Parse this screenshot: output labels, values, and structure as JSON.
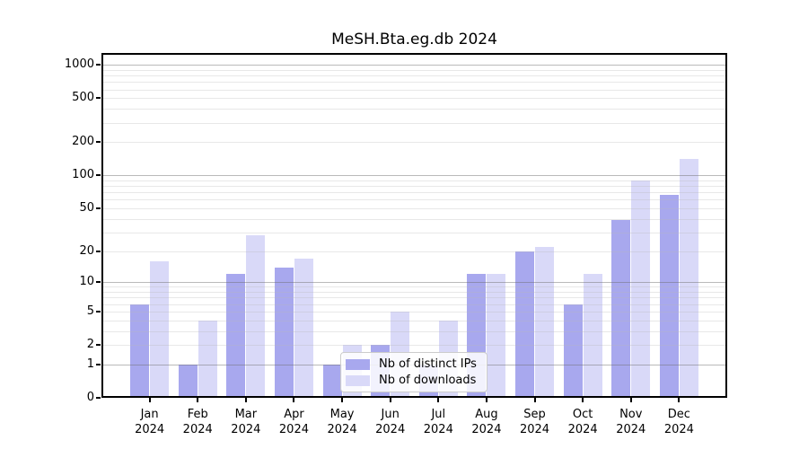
{
  "chart_data": {
    "type": "bar",
    "title": "MeSH.Bta.eg.db 2024",
    "categories": [
      "Jan",
      "Feb",
      "Mar",
      "Apr",
      "May",
      "Jun",
      "Jul",
      "Aug",
      "Sep",
      "Oct",
      "Nov",
      "Dec"
    ],
    "year_label": "2024",
    "series": [
      {
        "name": "Nb of distinct IPs",
        "color": "#a8a8ee",
        "values": [
          6,
          1,
          12,
          14,
          1,
          2,
          1,
          12,
          20,
          6,
          39,
          67
        ]
      },
      {
        "name": "Nb of downloads",
        "color": "#d9d9f8",
        "values": [
          16,
          4,
          28,
          17,
          2,
          5,
          4,
          12,
          22,
          12,
          90,
          140
        ]
      }
    ],
    "y_scale": "log1p",
    "ylim": [
      0,
      1280
    ],
    "y_ticks": [
      0,
      1,
      2,
      5,
      10,
      20,
      50,
      100,
      200,
      500,
      1000
    ],
    "major_gridlines": [
      1,
      10,
      100,
      1000
    ],
    "grid": true,
    "legend_position": "lower-center",
    "axis_color": "#000000",
    "background_color": "#ffffff"
  }
}
